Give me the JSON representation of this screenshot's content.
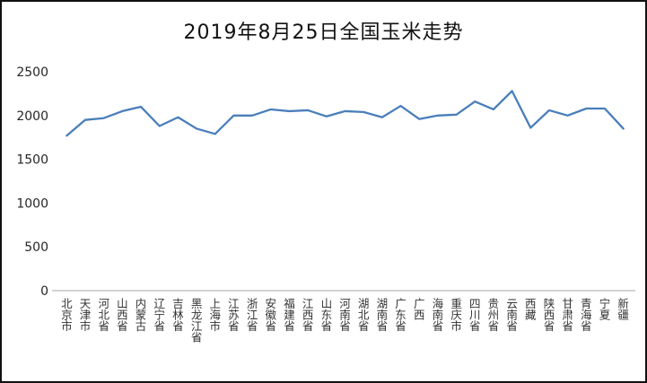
{
  "chart_data": {
    "type": "line",
    "title": "2019年8月25日全国玉米走势",
    "categories": [
      "北京市",
      "天津市",
      "河北省",
      "山西省",
      "内蒙古",
      "辽宁省",
      "吉林省",
      "黑龙江省",
      "上海市",
      "江苏省",
      "浙江省",
      "安徽省",
      "福建省",
      "江西省",
      "山东省",
      "河南省",
      "湖北省",
      "湖南省",
      "广东省",
      "广西",
      "海南省",
      "重庆市",
      "四川省",
      "贵州省",
      "云南省",
      "西藏",
      "陕西省",
      "甘肃省",
      "青海省",
      "宁夏",
      "新疆"
    ],
    "values": [
      1770,
      1950,
      1970,
      2050,
      2100,
      1880,
      1980,
      1850,
      1790,
      2000,
      2000,
      2070,
      2050,
      2060,
      1990,
      2050,
      2040,
      1980,
      2110,
      1960,
      2000,
      2010,
      2160,
      2070,
      2280,
      1860,
      2060,
      2000,
      2080,
      2080,
      1850
    ],
    "xlabel": "",
    "ylabel": "",
    "ylim": [
      0,
      2500
    ],
    "yticks": [
      0,
      500,
      1000,
      1500,
      2000,
      2500
    ],
    "grid": "off",
    "legend": "none",
    "line_color": "#4a7ebb",
    "axis_color": "#a6a6a6"
  }
}
